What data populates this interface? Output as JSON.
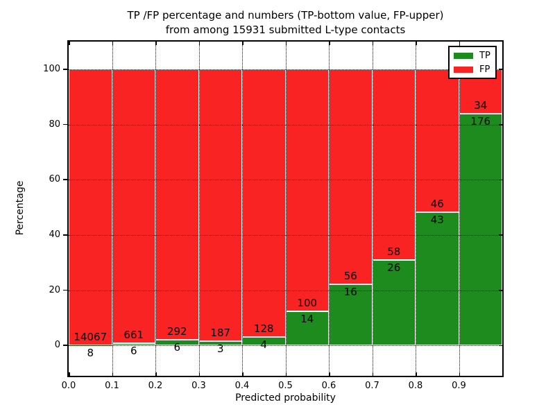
{
  "title": {
    "line1": "TP /FP percentage and numbers (TP-bottom value, FP-upper)",
    "line2": "from among 15931 submitted L-type contacts"
  },
  "chart_data": {
    "type": "bar",
    "stacked": true,
    "normalized": "each bin scaled to 100%",
    "title": "TP /FP percentage and numbers (TP-bottom value, FP-upper)\nfrom among 15931 submitted L-type contacts",
    "xlabel": "Predicted probability",
    "ylabel": "Percentage",
    "total_submitted_contacts": 15931,
    "categories": [
      "0.0",
      "0.1",
      "0.2",
      "0.3",
      "0.4",
      "0.5",
      "0.6",
      "0.7",
      "0.8",
      "0.9"
    ],
    "bin_width": 0.1,
    "series": [
      {
        "name": "TP",
        "color": "#1e8b1e",
        "counts": [
          8,
          6,
          6,
          3,
          4,
          14,
          16,
          26,
          43,
          176
        ],
        "percent_of_bin": [
          0.06,
          0.9,
          2.01,
          1.58,
          3.03,
          12.28,
          22.22,
          30.95,
          48.31,
          83.81
        ]
      },
      {
        "name": "FP",
        "color": "#fa2323",
        "counts": [
          14067,
          661,
          292,
          187,
          128,
          100,
          56,
          58,
          46,
          34
        ],
        "percent_of_bin": [
          99.94,
          99.1,
          97.99,
          98.42,
          96.97,
          87.72,
          77.78,
          69.05,
          51.69,
          16.19
        ]
      }
    ],
    "annotation_note": "FP count printed above TP/FP boundary, TP count below it",
    "xticks": [
      "0.0",
      "0.1",
      "0.2",
      "0.3",
      "0.4",
      "0.5",
      "0.6",
      "0.7",
      "0.8",
      "0.9"
    ],
    "yticks": [
      0,
      20,
      40,
      60,
      80,
      100
    ],
    "xlim": [
      0.0,
      1.0
    ],
    "ylim": [
      -11,
      110
    ],
    "grid": "dotted black, on",
    "legend": {
      "position": "upper-right",
      "entries": [
        {
          "label": "TP",
          "color": "#1e8b1e"
        },
        {
          "label": "FP",
          "color": "#fa2323"
        }
      ]
    },
    "bar_edge_color": "#ffffff"
  }
}
